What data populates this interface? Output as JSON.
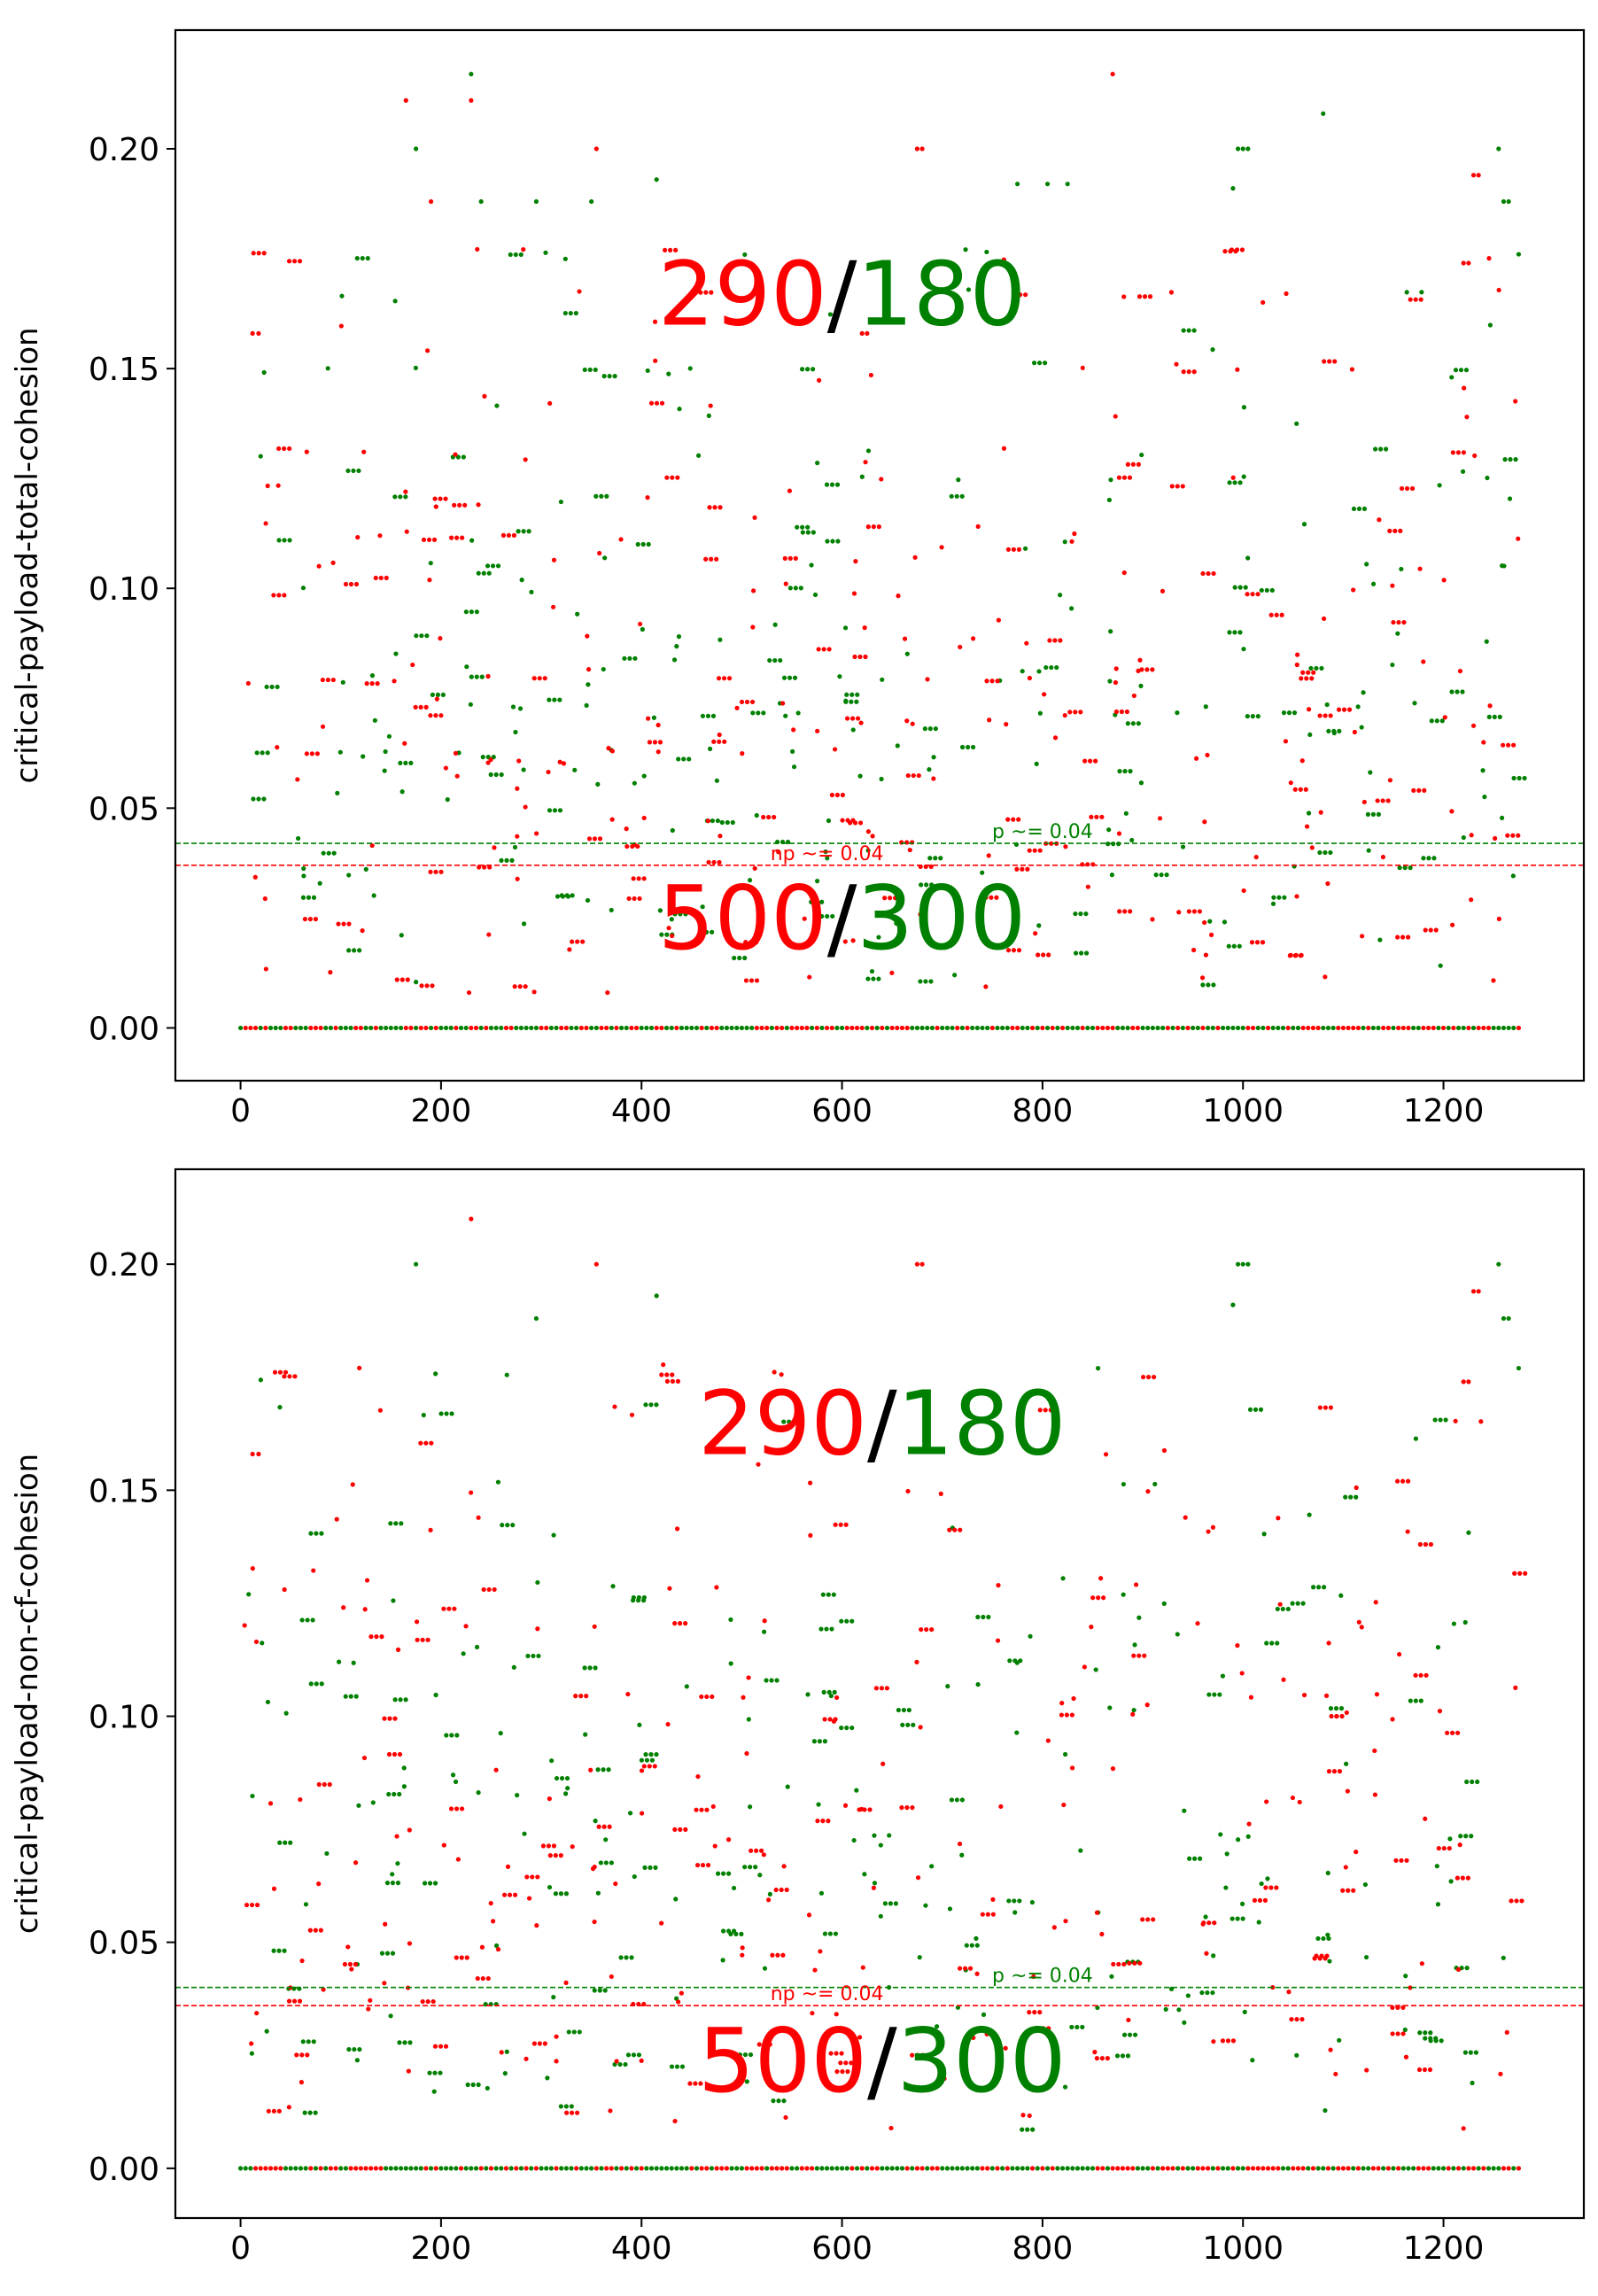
{
  "colors": {
    "fail": "#ff0000",
    "pass": "#008000",
    "axis": "#000000",
    "background": "#ffffff"
  },
  "chart_data": [
    {
      "type": "scatter",
      "ylabel": "critical-payload-total-cohesion",
      "xlabel": "",
      "xlim": [
        -65,
        1340
      ],
      "ylim": [
        -0.012,
        0.227
      ],
      "xticks": [
        0,
        200,
        400,
        600,
        800,
        1000,
        1200
      ],
      "yticks": [
        0.0,
        0.05,
        0.1,
        0.15,
        0.2
      ],
      "ytick_labels": [
        "0.00",
        "0.05",
        "0.10",
        "0.15",
        "0.20"
      ],
      "annotations": {
        "above": {
          "red": "290",
          "sep": "/",
          "green": "180",
          "x": 600,
          "y": 0.16
        },
        "below": {
          "red": "500",
          "sep": "/",
          "green": "300",
          "x": 600,
          "y": 0.018
        }
      },
      "thresholds": [
        {
          "label": "p ~= 0.04",
          "y": 0.042,
          "color": "green",
          "label_x": 800
        },
        {
          "label": "np ~= 0.04",
          "y": 0.037,
          "color": "red",
          "label_x": 585
        }
      ],
      "series": [
        {
          "color": "green",
          "seed": 2024,
          "count": 280,
          "min_x": 0,
          "max_x": 1275
        },
        {
          "color": "red",
          "seed": 3333,
          "count": 320,
          "min_x": 0,
          "max_x": 1275
        }
      ],
      "extra_points": [
        [
          230,
          0.217,
          "green"
        ],
        [
          165,
          0.211,
          "red"
        ],
        [
          230,
          0.211,
          "red"
        ],
        [
          870,
          0.217,
          "red"
        ],
        [
          1080,
          0.208,
          "green"
        ],
        [
          995,
          0.2,
          "green"
        ],
        [
          1000,
          0.2,
          "green"
        ],
        [
          1005,
          0.2,
          "green"
        ],
        [
          675,
          0.2,
          "red"
        ],
        [
          680,
          0.2,
          "red"
        ],
        [
          355,
          0.2,
          "red"
        ],
        [
          175,
          0.2,
          "green"
        ],
        [
          1255,
          0.2,
          "green"
        ],
        [
          415,
          0.193,
          "green"
        ],
        [
          1230,
          0.194,
          "red"
        ],
        [
          1235,
          0.194,
          "red"
        ],
        [
          775,
          0.192,
          "green"
        ],
        [
          805,
          0.192,
          "green"
        ],
        [
          825,
          0.192,
          "green"
        ],
        [
          990,
          0.191,
          "green"
        ],
        [
          240,
          0.188,
          "green"
        ],
        [
          190,
          0.188,
          "red"
        ],
        [
          295,
          0.188,
          "green"
        ],
        [
          350,
          0.188,
          "green"
        ],
        [
          1260,
          0.188,
          "green"
        ],
        [
          1265,
          0.188,
          "green"
        ],
        [
          12,
          0.158,
          "red"
        ],
        [
          18,
          0.158,
          "red"
        ],
        [
          620,
          0.158,
          "red"
        ],
        [
          625,
          0.158,
          "red"
        ],
        [
          1275,
          0.176,
          "green"
        ],
        [
          1220,
          0.174,
          "red"
        ],
        [
          1225,
          0.174,
          "red"
        ]
      ],
      "zero_line": {
        "y": 0.0,
        "step": 5,
        "min_x": 0,
        "max_x": 1275
      }
    },
    {
      "type": "scatter",
      "ylabel": "critical-payload-non-cf-cohesion",
      "xlabel": "",
      "xlim": [
        -65,
        1340
      ],
      "ylim": [
        -0.011,
        0.221
      ],
      "xticks": [
        0,
        200,
        400,
        600,
        800,
        1000,
        1200
      ],
      "yticks": [
        0.0,
        0.05,
        0.1,
        0.15,
        0.2
      ],
      "ytick_labels": [
        "0.00",
        "0.05",
        "0.10",
        "0.15",
        "0.20"
      ],
      "annotations": {
        "above": {
          "red": "290",
          "sep": "/",
          "green": "180",
          "x": 640,
          "y": 0.158
        },
        "below": {
          "red": "500",
          "sep": "/",
          "green": "300",
          "x": 640,
          "y": 0.017
        }
      },
      "thresholds": [
        {
          "label": "p ~= 0.04",
          "y": 0.04,
          "color": "green",
          "label_x": 800
        },
        {
          "label": "np ~= 0.04",
          "y": 0.036,
          "color": "red",
          "label_x": 585
        }
      ],
      "series": [
        {
          "color": "green",
          "seed": 4242,
          "count": 260,
          "min_x": 0,
          "max_x": 1275
        },
        {
          "color": "red",
          "seed": 5151,
          "count": 300,
          "min_x": 0,
          "max_x": 1275
        }
      ],
      "extra_points": [
        [
          175,
          0.2,
          "green"
        ],
        [
          355,
          0.2,
          "red"
        ],
        [
          675,
          0.2,
          "red"
        ],
        [
          680,
          0.2,
          "red"
        ],
        [
          995,
          0.2,
          "green"
        ],
        [
          1000,
          0.2,
          "green"
        ],
        [
          1005,
          0.2,
          "green"
        ],
        [
          1255,
          0.2,
          "green"
        ],
        [
          230,
          0.21,
          "red"
        ],
        [
          415,
          0.193,
          "green"
        ],
        [
          1230,
          0.194,
          "red"
        ],
        [
          1235,
          0.194,
          "red"
        ],
        [
          990,
          0.191,
          "green"
        ],
        [
          295,
          0.188,
          "green"
        ],
        [
          1260,
          0.188,
          "green"
        ],
        [
          1265,
          0.188,
          "green"
        ],
        [
          12,
          0.158,
          "red"
        ],
        [
          18,
          0.158,
          "red"
        ],
        [
          1275,
          0.177,
          "green"
        ],
        [
          1220,
          0.174,
          "red"
        ],
        [
          1225,
          0.174,
          "red"
        ]
      ],
      "zero_line": {
        "y": 0.0,
        "step": 5,
        "min_x": 0,
        "max_x": 1275
      }
    }
  ]
}
